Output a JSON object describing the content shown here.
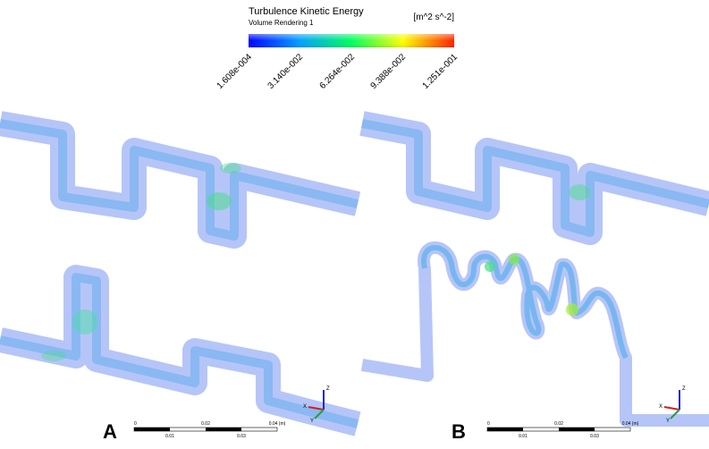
{
  "legend": {
    "title": "Turbulence Kinetic Energy",
    "subtitle": "Volume Rendering 1",
    "units": "[m^2 s^-2]",
    "ticks": [
      "1.608e-004",
      "3.140e-002",
      "6.264e-002",
      "9.388e-002",
      "1.251e-001"
    ]
  },
  "panels": [
    {
      "label": "A",
      "scale": {
        "top": [
          "0",
          "0.02",
          "0.04 (m)"
        ],
        "bottom": [
          "0.01",
          "0.03"
        ]
      },
      "axes": [
        "Z",
        "Y",
        "X"
      ]
    },
    {
      "label": "B",
      "scale": {
        "top": [
          "0",
          "0.02",
          "0.04 (m)"
        ],
        "bottom": [
          "0.01",
          "0.03"
        ]
      },
      "axes": [
        "Z",
        "Y",
        "X"
      ]
    }
  ]
}
